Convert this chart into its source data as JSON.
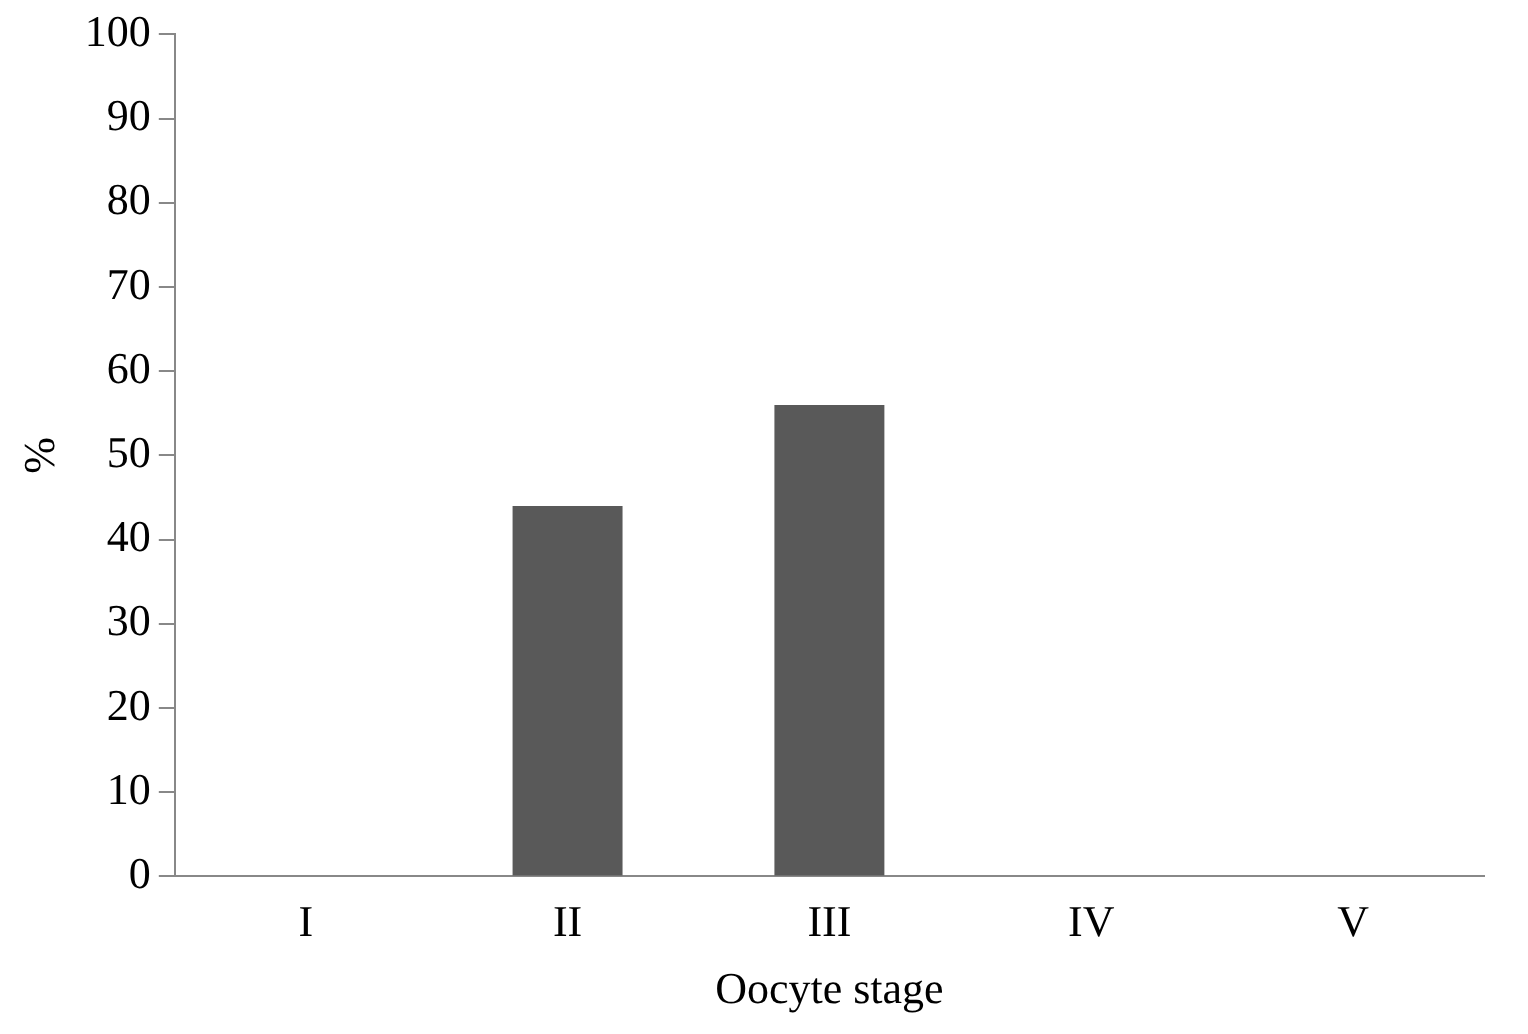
{
  "chart_data": {
    "type": "bar",
    "xlabel": "Oocyte stage",
    "ylabel": "%",
    "categories": [
      "I",
      "II",
      "III",
      "IV",
      "V"
    ],
    "values": [
      0,
      44,
      56,
      0,
      0
    ],
    "color": "#595959",
    "ylim": [
      0,
      100
    ],
    "yticks": [
      0,
      10,
      20,
      30,
      40,
      50,
      60,
      70,
      80,
      90,
      100
    ],
    "grid": false
  }
}
